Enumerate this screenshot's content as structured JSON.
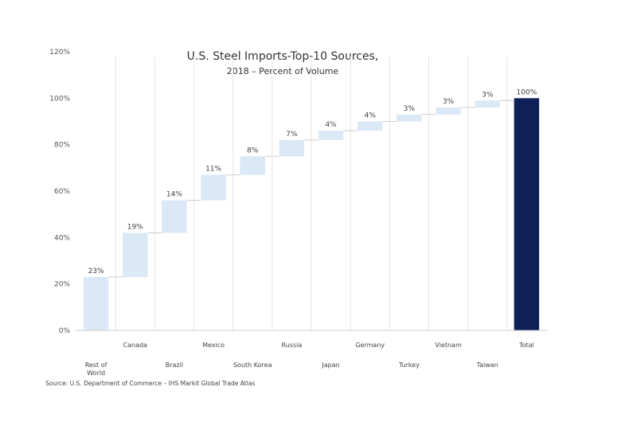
{
  "chart_data": {
    "type": "bar",
    "subtype": "waterfall",
    "title": "U.S. Steel Imports-Top-10 Sources,",
    "subtitle": "2018 – Percent of Volume",
    "categories": [
      "Rest of World",
      "Canada",
      "Brazil",
      "Mexico",
      "South Korea",
      "Russia",
      "Japan",
      "Germany",
      "Turkey",
      "Vietnam",
      "Taiwan",
      "Total"
    ],
    "values": [
      23,
      19,
      14,
      11,
      8,
      7,
      4,
      4,
      3,
      3,
      3,
      100
    ],
    "data_labels": [
      "23%",
      "19%",
      "14%",
      "11%",
      "8%",
      "7%",
      "4%",
      "4%",
      "3%",
      "3%",
      "3%",
      "100%"
    ],
    "y_ticks": [
      "0%",
      "20%",
      "40%",
      "60%",
      "80%",
      "100%",
      "120%"
    ],
    "ylim": [
      0,
      120
    ],
    "grid": "vertical category separators",
    "legend": "none",
    "colors": {
      "increment": "#dbe8f5",
      "total": "#0d2157",
      "connector": "#cccccc",
      "separator": "#e6e6e6"
    }
  },
  "source": "Source:  U.S. Department of Commerce – IHS Markit Global Trade Atlas"
}
